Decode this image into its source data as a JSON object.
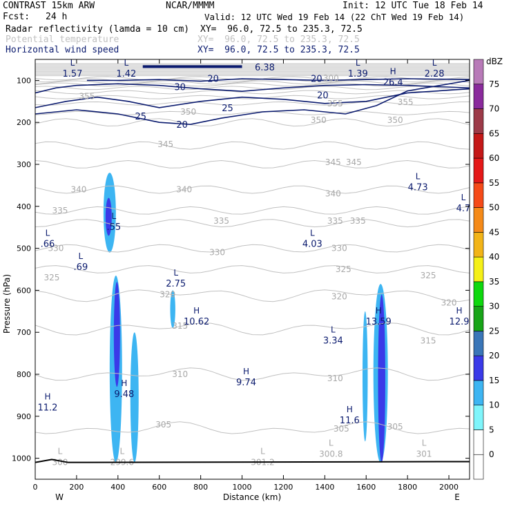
{
  "header": {
    "model": "CONTRAST 15km ARW",
    "org": "NCAR/MMMM",
    "init": "Init: 12 UTC Tue 18 Feb 14",
    "fcst_label": "Fcst:",
    "fcst_value": "24 h",
    "valid": "Valid: 12 UTC Wed 19 Feb 14 (22 ChT Wed 19 Feb 14)"
  },
  "fields": [
    {
      "name": "Radar reflectivity (lamda = 10 cm)",
      "xy": "XY=  96.0, 72.5 to 235.3, 72.5",
      "color": "#000000"
    },
    {
      "name": "Potential temperature",
      "xy": "XY=  96.0, 72.5 to 235.3, 72.5",
      "color": "#c0c0c0"
    },
    {
      "name": "Horizontal wind speed",
      "xy": "XY=  96.0, 72.5 to 235.3, 72.5",
      "color": "#0a1a6e"
    }
  ],
  "chart_data": {
    "type": "cross-section",
    "xlabel": "Distance (km)",
    "ylabel": "Pressure (hPa)",
    "xlim": [
      0,
      2100
    ],
    "ylim": [
      1050,
      50
    ],
    "x_ticks": [
      0,
      200,
      400,
      600,
      800,
      1000,
      1200,
      1400,
      1600,
      1800,
      2000
    ],
    "y_ticks": [
      100,
      200,
      300,
      400,
      500,
      600,
      700,
      800,
      900,
      1000
    ],
    "direction_left": "W",
    "direction_right": "E",
    "colorbar": {
      "unit": "dBZ",
      "levels": [
        0,
        5,
        10,
        15,
        20,
        25,
        30,
        35,
        40,
        45,
        50,
        55,
        60,
        65,
        70,
        75
      ],
      "colors": [
        "#ffffff",
        "#ffffff",
        "#7ff5fb",
        "#3db5f2",
        "#3a3ae8",
        "#3a76b8",
        "#18a418",
        "#0ed80e",
        "#f5f018",
        "#f2b418",
        "#f58a18",
        "#f54a18",
        "#e41818",
        "#c41818",
        "#9c3a48",
        "#8a2a9c",
        "#b87ab8"
      ]
    },
    "theta_contours": {
      "color": "#c0c0c0",
      "labels": [
        {
          "text": "355",
          "x": 250,
          "p": 138
        },
        {
          "text": "355",
          "x": 1450,
          "p": 155
        },
        {
          "text": "355",
          "x": 1790,
          "p": 152
        },
        {
          "text": "350",
          "x": 740,
          "p": 175
        },
        {
          "text": "350",
          "x": 1370,
          "p": 195
        },
        {
          "text": "350",
          "x": 1740,
          "p": 195
        },
        {
          "text": "345",
          "x": 630,
          "p": 252
        },
        {
          "text": "345",
          "x": 1440,
          "p": 295
        },
        {
          "text": "345",
          "x": 1540,
          "p": 295
        },
        {
          "text": "340",
          "x": 210,
          "p": 360
        },
        {
          "text": "340",
          "x": 720,
          "p": 360
        },
        {
          "text": "340",
          "x": 1440,
          "p": 370
        },
        {
          "text": "335",
          "x": 120,
          "p": 410
        },
        {
          "text": "335",
          "x": 900,
          "p": 435
        },
        {
          "text": "335",
          "x": 1450,
          "p": 435
        },
        {
          "text": "335",
          "x": 1560,
          "p": 435
        },
        {
          "text": "330",
          "x": 100,
          "p": 500
        },
        {
          "text": "330",
          "x": 880,
          "p": 510
        },
        {
          "text": "330",
          "x": 1470,
          "p": 500
        },
        {
          "text": "325",
          "x": 80,
          "p": 570
        },
        {
          "text": "325",
          "x": 1490,
          "p": 550
        },
        {
          "text": "325",
          "x": 1900,
          "p": 565
        },
        {
          "text": "320",
          "x": 640,
          "p": 610
        },
        {
          "text": "320",
          "x": 1470,
          "p": 615
        },
        {
          "text": "320",
          "x": 2000,
          "p": 630
        },
        {
          "text": "315",
          "x": 700,
          "p": 685
        },
        {
          "text": "315",
          "x": 1900,
          "p": 720
        },
        {
          "text": "310",
          "x": 700,
          "p": 800
        },
        {
          "text": "310",
          "x": 1450,
          "p": 810
        },
        {
          "text": "305",
          "x": 620,
          "p": 920
        },
        {
          "text": "305",
          "x": 1480,
          "p": 930
        },
        {
          "text": "305",
          "x": 1740,
          "p": 925
        },
        {
          "text": "300",
          "x": 1430,
          "p": 95
        }
      ],
      "lows_highs": [
        {
          "type": "L",
          "value": "300",
          "x": 120,
          "p": 1000
        },
        {
          "type": "L",
          "value": "299.6",
          "x": 420,
          "p": 1000
        },
        {
          "type": "L",
          "value": "301.2",
          "x": 1100,
          "p": 1000
        },
        {
          "type": "L",
          "value": "300.8",
          "x": 1430,
          "p": 980
        },
        {
          "type": "L",
          "value": "301",
          "x": 1880,
          "p": 980
        }
      ]
    },
    "wind_contours": {
      "color": "#0a1a6e",
      "labels": [
        {
          "text": "20",
          "x": 860,
          "p": 95
        },
        {
          "text": "20",
          "x": 1360,
          "p": 95
        },
        {
          "text": "30",
          "x": 700,
          "p": 115
        },
        {
          "text": "20",
          "x": 1390,
          "p": 135
        },
        {
          "text": "25",
          "x": 930,
          "p": 165
        },
        {
          "text": "25",
          "x": 510,
          "p": 185
        },
        {
          "text": "20",
          "x": 710,
          "p": 205
        }
      ],
      "lows_highs": [
        {
          "type": "L",
          "value": "1.57",
          "x": 180,
          "p": 75
        },
        {
          "type": "L",
          "value": "1.42",
          "x": 440,
          "p": 75
        },
        {
          "type": "L",
          "value": "6.38",
          "x": 1110,
          "p": 60
        },
        {
          "type": "L",
          "value": "1.39",
          "x": 1560,
          "p": 75
        },
        {
          "type": "H",
          "value": "26.4",
          "x": 1730,
          "p": 95
        },
        {
          "type": "L",
          "value": "2.28",
          "x": 1930,
          "p": 75
        },
        {
          "type": "L",
          "value": "4.73",
          "x": 1850,
          "p": 345
        },
        {
          "type": "L",
          "value": "4.7",
          "x": 2070,
          "p": 395
        },
        {
          "type": "L",
          "value": ".55",
          "x": 380,
          "p": 440
        },
        {
          "type": "L",
          "value": ".66",
          "x": 60,
          "p": 480
        },
        {
          "type": "L",
          "value": ".69",
          "x": 220,
          "p": 535
        },
        {
          "type": "L",
          "value": "4.03",
          "x": 1340,
          "p": 480
        },
        {
          "type": "L",
          "value": "2.75",
          "x": 680,
          "p": 575
        },
        {
          "type": "H",
          "value": "10.62",
          "x": 780,
          "p": 665
        },
        {
          "type": "H",
          "value": "13.59",
          "x": 1660,
          "p": 665
        },
        {
          "type": "H",
          "value": "12.9",
          "x": 2050,
          "p": 665
        },
        {
          "type": "L",
          "value": "3.34",
          "x": 1440,
          "p": 710
        },
        {
          "type": "H",
          "value": "9.74",
          "x": 1020,
          "p": 810
        },
        {
          "type": "H",
          "value": "9.48",
          "x": 430,
          "p": 838
        },
        {
          "type": "H",
          "value": "11.2",
          "x": 60,
          "p": 870
        },
        {
          "type": "H",
          "value": "11.6",
          "x": 1520,
          "p": 900
        }
      ]
    },
    "reflectivity_cells": [
      {
        "x": 360,
        "p_top": 320,
        "p_bottom": 510,
        "width": 60,
        "level": 10
      },
      {
        "x": 355,
        "p_top": 380,
        "p_bottom": 470,
        "width": 30,
        "level": 15
      },
      {
        "x": 390,
        "p_top": 565,
        "p_bottom": 1010,
        "width": 60,
        "level": 10
      },
      {
        "x": 395,
        "p_top": 580,
        "p_bottom": 830,
        "width": 30,
        "level": 15
      },
      {
        "x": 480,
        "p_top": 700,
        "p_bottom": 1010,
        "width": 40,
        "level": 10
      },
      {
        "x": 665,
        "p_top": 600,
        "p_bottom": 690,
        "width": 25,
        "level": 10
      },
      {
        "x": 1595,
        "p_top": 650,
        "p_bottom": 960,
        "width": 25,
        "level": 10
      },
      {
        "x": 1670,
        "p_top": 585,
        "p_bottom": 1010,
        "width": 70,
        "level": 10
      },
      {
        "x": 1675,
        "p_top": 610,
        "p_bottom": 1010,
        "width": 35,
        "level": 15
      }
    ]
  }
}
